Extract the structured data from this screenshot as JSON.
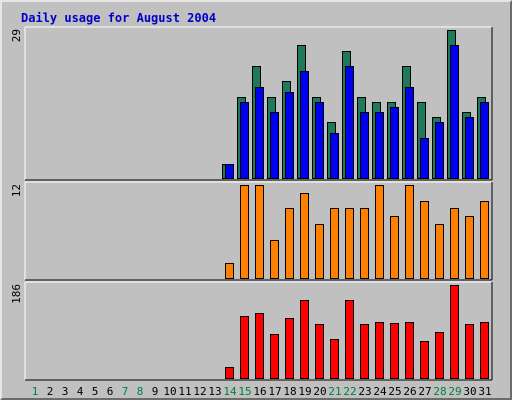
{
  "chart_data": {
    "type": "bar",
    "title": "Daily usage for August 2004",
    "days": [
      "1",
      "2",
      "3",
      "4",
      "5",
      "6",
      "7",
      "8",
      "9",
      "10",
      "11",
      "12",
      "13",
      "14",
      "15",
      "16",
      "17",
      "18",
      "19",
      "20",
      "21",
      "22",
      "23",
      "24",
      "25",
      "26",
      "27",
      "28",
      "29",
      "30",
      "31"
    ],
    "weekend_days": [
      "1",
      "7",
      "8",
      "14",
      "15",
      "21",
      "22",
      "28",
      "29"
    ],
    "colors": {
      "title": "#0000c8",
      "weekday_label": "#000000",
      "weekend_label": "#008040",
      "background": "#c0c0c0",
      "panel_border_light": "#e6e6e6",
      "panel_border_dark": "#6c6c6c"
    },
    "panels": [
      {
        "max_label": "29",
        "ymax": 29,
        "series": [
          {
            "color": "#1e7a5a",
            "values": [
              0,
              0,
              0,
              0,
              0,
              0,
              0,
              0,
              0,
              0,
              0,
              0,
              0,
              3,
              16,
              22,
              16,
              19,
              26,
              16,
              11,
              25,
              16,
              15,
              15,
              22,
              15,
              12,
              29,
              13,
              16
            ]
          },
          {
            "color": "#0000f0",
            "values": [
              0,
              0,
              0,
              0,
              0,
              0,
              0,
              0,
              0,
              0,
              0,
              0,
              0,
              3,
              15,
              18,
              13,
              17,
              21,
              15,
              9,
              22,
              13,
              13,
              14,
              18,
              8,
              11,
              26,
              12,
              15
            ]
          }
        ]
      },
      {
        "max_label": "12",
        "ymax": 12,
        "series": [
          {
            "color": "#ff8000",
            "values": [
              0,
              0,
              0,
              0,
              0,
              0,
              0,
              0,
              0,
              0,
              0,
              0,
              0,
              2,
              12,
              12,
              5,
              9,
              11,
              7,
              9,
              9,
              9,
              12,
              8,
              12,
              10,
              7,
              9,
              8,
              10
            ]
          }
        ]
      },
      {
        "max_label": "186",
        "ymax": 186,
        "series": [
          {
            "color": "#ff0000",
            "values": [
              0,
              0,
              0,
              0,
              0,
              0,
              0,
              0,
              0,
              0,
              0,
              0,
              0,
              23,
              125,
              130,
              90,
              120,
              157,
              108,
              80,
              157,
              108,
              112,
              110,
              112,
              75,
              93,
              186,
              108,
              113
            ]
          }
        ]
      }
    ]
  }
}
